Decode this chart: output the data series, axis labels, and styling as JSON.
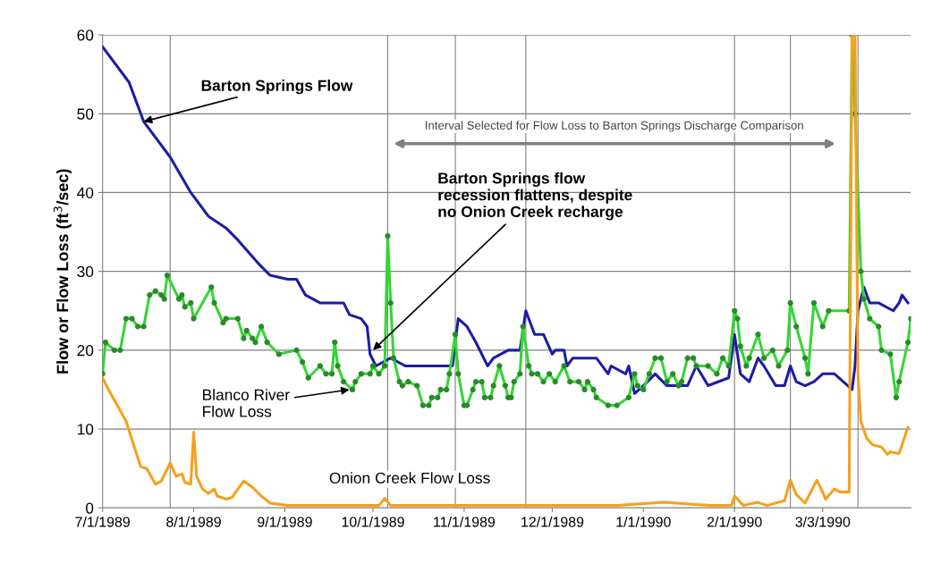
{
  "chart_data": {
    "type": "line",
    "ylabel": "Flow or Flow Loss (ft$^{3}$/sec)",
    "xlim": [
      "1989-07-01",
      "1990-04-02"
    ],
    "xticks": [
      {
        "value": "1989-07-01",
        "label": "7/1/1989"
      },
      {
        "value": "1989-08-01",
        "label": "8/1/1989"
      },
      {
        "value": "1989-09-01",
        "label": "9/1/1989"
      },
      {
        "value": "1989-10-01",
        "label": "10/1/1989"
      },
      {
        "value": "1989-11-01",
        "label": "11/1/1989"
      },
      {
        "value": "1989-12-01",
        "label": "12/1/1989"
      },
      {
        "value": "1990-01-01",
        "label": "1/1/1990"
      },
      {
        "value": "1990-02-01",
        "label": "2/1/1990"
      },
      {
        "value": "1990-03-03",
        "label": "3/3/1990"
      }
    ],
    "ylim": [
      0,
      60
    ],
    "yticks": [
      0,
      10,
      20,
      30,
      40,
      50,
      60
    ],
    "grid": "y",
    "line_style": "solid",
    "series": [
      {
        "color": "#1c1ca6",
        "marker": "none",
        "x": [
          "1989-07-01",
          "1989-07-10",
          "1989-07-15",
          "1989-07-24",
          "1989-07-31",
          "1989-08-06",
          "1989-08-12",
          "1989-08-16",
          "1989-08-23",
          "1989-08-27",
          "1989-09-02",
          "1989-09-05",
          "1989-09-08",
          "1989-09-13",
          "1989-09-21",
          "1989-09-23",
          "1989-09-27",
          "1989-09-29",
          "1989-09-30",
          "1989-10-02",
          "1989-10-07",
          "1989-10-12",
          "1989-10-28",
          "1989-10-30",
          "1989-11-02",
          "1989-11-05",
          "1989-11-09",
          "1989-11-11",
          "1989-11-16",
          "1989-11-20",
          "1989-11-22",
          "1989-11-25",
          "1989-11-28",
          "1989-12-01",
          "1989-12-02",
          "1989-12-05",
          "1989-12-06",
          "1989-12-08",
          "1989-12-16",
          "1989-12-20",
          "1989-12-21",
          "1989-12-26",
          "1989-12-27",
          "1989-12-29",
          "1990-01-01",
          "1990-01-05",
          "1990-01-09",
          "1990-01-16",
          "1990-01-19",
          "1990-01-23",
          "1990-01-30",
          "1990-02-01",
          "1990-02-03",
          "1990-02-06",
          "1990-02-09",
          "1990-02-11",
          "1990-02-15",
          "1990-02-18",
          "1990-02-20",
          "1990-02-22",
          "1990-02-25",
          "1990-02-28",
          "1990-03-03",
          "1990-03-07",
          "1990-03-10",
          "1990-03-13",
          "1990-03-14",
          "1990-03-15",
          "1990-03-17",
          "1990-03-19",
          "1990-03-22",
          "1990-03-27",
          "1990-03-29",
          "1990-03-30",
          "1990-04-01"
        ],
        "values": [
          58.5,
          54,
          49,
          44.5,
          40,
          37,
          35.5,
          34,
          31,
          29.5,
          29,
          29,
          27,
          26,
          26,
          24.5,
          24,
          23,
          19.5,
          18,
          19,
          18,
          18,
          24,
          23,
          21,
          18,
          19,
          20,
          20,
          25,
          22,
          22,
          19.5,
          20,
          20,
          18,
          19,
          19,
          17,
          18,
          17,
          18,
          14.5,
          15.5,
          17,
          15.5,
          15.5,
          18,
          15.5,
          16.5,
          22,
          17,
          16,
          19,
          18,
          15.5,
          15.5,
          18,
          16,
          15.5,
          16,
          17,
          17,
          16,
          15,
          18,
          25,
          28,
          26,
          26,
          25,
          26,
          27,
          26
        ]
      },
      {
        "color": "#33d633",
        "marker": "circle",
        "x": [
          "1989-07-01",
          "1989-07-02",
          "1989-07-05",
          "1989-07-07",
          "1989-07-09",
          "1989-07-11",
          "1989-07-13",
          "1989-07-15",
          "1989-07-17",
          "1989-07-19",
          "1989-07-21",
          "1989-07-22",
          "1989-07-23",
          "1989-07-27",
          "1989-07-28",
          "1989-07-29",
          "1989-07-31",
          "1989-08-01",
          "1989-08-07",
          "1989-08-08",
          "1989-08-11",
          "1989-08-12",
          "1989-08-16",
          "1989-08-18",
          "1989-08-19",
          "1989-08-21",
          "1989-08-22",
          "1989-08-24",
          "1989-08-26",
          "1989-08-30",
          "1989-09-05",
          "1989-09-07",
          "1989-09-09",
          "1989-09-13",
          "1989-09-15",
          "1989-09-17",
          "1989-09-18",
          "1989-09-19",
          "1989-09-21",
          "1989-09-24",
          "1989-09-25",
          "1989-09-27",
          "1989-09-30",
          "1989-10-01",
          "1989-10-03",
          "1989-10-05",
          "1989-10-06",
          "1989-10-07",
          "1989-10-08",
          "1989-10-10",
          "1989-10-11",
          "1989-10-13",
          "1989-10-16",
          "1989-10-18",
          "1989-10-20",
          "1989-10-21",
          "1989-10-23",
          "1989-10-24",
          "1989-10-26",
          "1989-10-27",
          "1989-10-29",
          "1989-10-30",
          "1989-11-01",
          "1989-11-02",
          "1989-11-04",
          "1989-11-05",
          "1989-11-07",
          "1989-11-08",
          "1989-11-10",
          "1989-11-11",
          "1989-11-13",
          "1989-11-15",
          "1989-11-16",
          "1989-11-17",
          "1989-11-18",
          "1989-11-20",
          "1989-11-21",
          "1989-11-23",
          "1989-11-24",
          "1989-11-26",
          "1989-11-28",
          "1989-11-30",
          "1989-12-02",
          "1989-12-05",
          "1989-12-07",
          "1989-12-10",
          "1989-12-12",
          "1989-12-13",
          "1989-12-15",
          "1989-12-16",
          "1989-12-20",
          "1989-12-23",
          "1989-12-27",
          "1989-12-29",
          "1989-12-30",
          "1990-01-01",
          "1990-01-03",
          "1990-01-05",
          "1990-01-07",
          "1990-01-09",
          "1990-01-11",
          "1990-01-13",
          "1990-01-14",
          "1990-01-16",
          "1990-01-18",
          "1990-01-19",
          "1990-01-23",
          "1990-01-26",
          "1990-01-28",
          "1990-01-30",
          "1990-02-01",
          "1990-02-02",
          "1990-02-03",
          "1990-02-05",
          "1990-02-06",
          "1990-02-09",
          "1990-02-11",
          "1990-02-14",
          "1990-02-16",
          "1990-02-19",
          "1990-02-20",
          "1990-02-22",
          "1990-02-25",
          "1990-02-26",
          "1990-02-28",
          "1990-03-03",
          "1990-03-05",
          "1990-03-12",
          "1990-03-13",
          "1990-03-14",
          "1990-03-16",
          "1990-03-17",
          "1990-03-19",
          "1990-03-22",
          "1990-03-23",
          "1990-03-26",
          "1990-03-28",
          "1990-03-29",
          "1990-04-01",
          "1990-04-02"
        ],
        "values": [
          17,
          21,
          20,
          20,
          24,
          24,
          23,
          23,
          27,
          27.5,
          27,
          26.5,
          29.5,
          26.5,
          27,
          25.5,
          26,
          24,
          28,
          26,
          23.5,
          24,
          24,
          21.5,
          22.5,
          21.5,
          21,
          23,
          21,
          19.5,
          20,
          18.5,
          16.5,
          18,
          17,
          17,
          21,
          18,
          16,
          15,
          16,
          17,
          17,
          18,
          17,
          18,
          34.5,
          26,
          19,
          16,
          15.5,
          16,
          15.5,
          13,
          13,
          14,
          14,
          15,
          15,
          17,
          22,
          17,
          13,
          13,
          15,
          16,
          16,
          14,
          14,
          15.5,
          18,
          15.5,
          14,
          14,
          16,
          17,
          23,
          18,
          17,
          17,
          16,
          17,
          16,
          18,
          16,
          16,
          15,
          16,
          15,
          14,
          13,
          13,
          14,
          17,
          15.5,
          15,
          17,
          19,
          19,
          16,
          17,
          15.5,
          16,
          19,
          19,
          18,
          18,
          17,
          19,
          18,
          25,
          24,
          20.5,
          18,
          19,
          22,
          19,
          20,
          18,
          20,
          26,
          23,
          19,
          17,
          26,
          23,
          25,
          25,
          60,
          50,
          30,
          26.5,
          24,
          23,
          20,
          19.5,
          14,
          16,
          21,
          24
        ]
      },
      {
        "color": "#f5a01c",
        "marker": "none",
        "x": [
          "1989-07-01",
          "1989-07-03",
          "1989-07-06",
          "1989-07-09",
          "1989-07-12",
          "1989-07-14",
          "1989-07-16",
          "1989-07-19",
          "1989-07-21",
          "1989-07-24",
          "1989-07-26",
          "1989-07-28",
          "1989-07-29",
          "1989-07-31",
          "1989-08-01",
          "1989-08-02",
          "1989-08-04",
          "1989-08-06",
          "1989-08-08",
          "1989-08-09",
          "1989-08-12",
          "1989-08-14",
          "1989-08-18",
          "1989-08-21",
          "1989-08-24",
          "1989-08-27",
          "1989-09-02",
          "1989-09-20",
          "1989-10-03",
          "1989-10-05",
          "1989-10-07",
          "1989-11-14",
          "1989-12-23",
          "1990-01-08",
          "1990-01-24",
          "1990-01-31",
          "1990-02-01",
          "1990-02-04",
          "1990-02-09",
          "1990-02-12",
          "1990-02-18",
          "1990-02-20",
          "1990-02-22",
          "1990-02-25",
          "1990-03-01",
          "1990-03-03",
          "1990-03-04",
          "1990-03-07",
          "1990-03-09",
          "1990-03-12",
          "1990-03-13",
          "1990-03-14",
          "1990-03-15",
          "1990-03-16",
          "1990-03-18",
          "1990-03-20",
          "1990-03-23",
          "1990-03-25",
          "1990-03-26",
          "1990-03-29",
          "1990-03-30",
          "1990-04-01"
        ],
        "values": [
          16.5,
          15,
          13,
          11,
          7.5,
          5.2,
          5,
          3,
          3.4,
          5.7,
          4,
          4.3,
          3.2,
          3,
          9.6,
          4,
          2.4,
          1.8,
          2.4,
          1.5,
          1.1,
          1.3,
          3.4,
          2.6,
          1.5,
          0.6,
          0.3,
          0.3,
          0.3,
          1.2,
          0.3,
          0.3,
          0.3,
          0.7,
          0.3,
          0.3,
          1.5,
          0.3,
          0.7,
          0.3,
          0.9,
          3.5,
          1.7,
          0.6,
          3.5,
          2,
          1.1,
          2.4,
          2,
          2,
          60,
          60,
          17,
          11,
          8.8,
          8,
          7.7,
          6.8,
          7.1,
          6.9,
          8,
          10.2
        ]
      }
    ],
    "ref_lines": [
      {
        "axis": "x",
        "value": "1989-07-24",
        "color": "#808080"
      },
      {
        "axis": "x",
        "value": "1989-10-06",
        "color": "#808080"
      },
      {
        "axis": "x",
        "value": "1989-10-29",
        "color": "#808080"
      },
      {
        "axis": "x",
        "value": "1989-11-22",
        "color": "#808080"
      },
      {
        "axis": "x",
        "value": "1990-02-01",
        "color": "#808080"
      },
      {
        "axis": "x",
        "value": "1990-02-20",
        "color": "#808080"
      },
      {
        "axis": "x",
        "value": "1990-03-15",
        "color": "#808080"
      }
    ],
    "annotations": [
      "Interval Selected for Flow Loss to Barton Springs Discharge Comparison",
      {
        "text": "Barton Springs Flow",
        "x": "1989-07-15",
        "y": 49
      },
      {
        "text": "Barton Springs flow\nrecession flattens, despite\nno Onion Creek recharge",
        "x": "1989-10-01",
        "y": 20
      },
      {
        "text": "Blanco River\nFlow Loss",
        "x": "1989-09-23",
        "y": 15
      },
      "Onion Creek Flow Loss"
    ]
  }
}
